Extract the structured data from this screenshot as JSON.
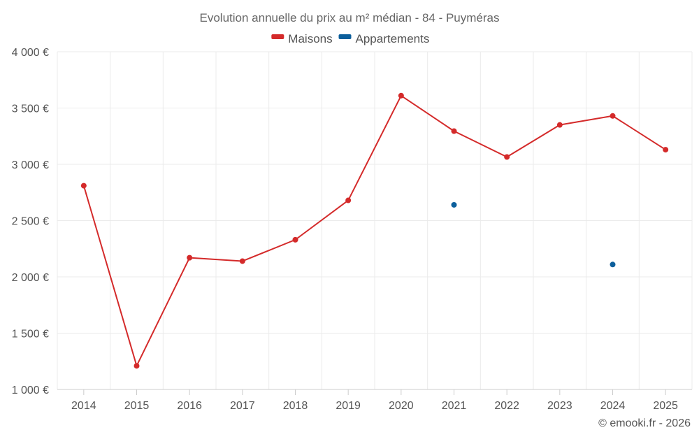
{
  "chart_data": {
    "type": "line",
    "title": "Evolution annuelle du prix au m² médian - 84 - Puyméras",
    "categories": [
      "2014",
      "2015",
      "2016",
      "2017",
      "2018",
      "2019",
      "2020",
      "2021",
      "2022",
      "2023",
      "2024",
      "2025"
    ],
    "series": [
      {
        "name": "Maisons",
        "color": "#d42a2a",
        "values": [
          2810,
          1210,
          2170,
          2140,
          2330,
          2680,
          3610,
          3295,
          3065,
          3350,
          3430,
          3130
        ]
      },
      {
        "name": "Appartements",
        "color": "#0c5f9c",
        "values": [
          null,
          null,
          null,
          null,
          null,
          null,
          null,
          2640,
          null,
          null,
          2110,
          null
        ]
      }
    ],
    "ylim": [
      1000,
      4000
    ],
    "yticks": [
      1000,
      1500,
      2000,
      2500,
      3000,
      3500,
      4000
    ],
    "ytick_labels": [
      "1 000 €",
      "1 500 €",
      "2 000 €",
      "2 500 €",
      "3 000 €",
      "3 500 €",
      "4 000 €"
    ],
    "xlabel": "",
    "ylabel": "",
    "grid": true,
    "legend": "top-center"
  },
  "credit": "© emooki.fr - 2026"
}
